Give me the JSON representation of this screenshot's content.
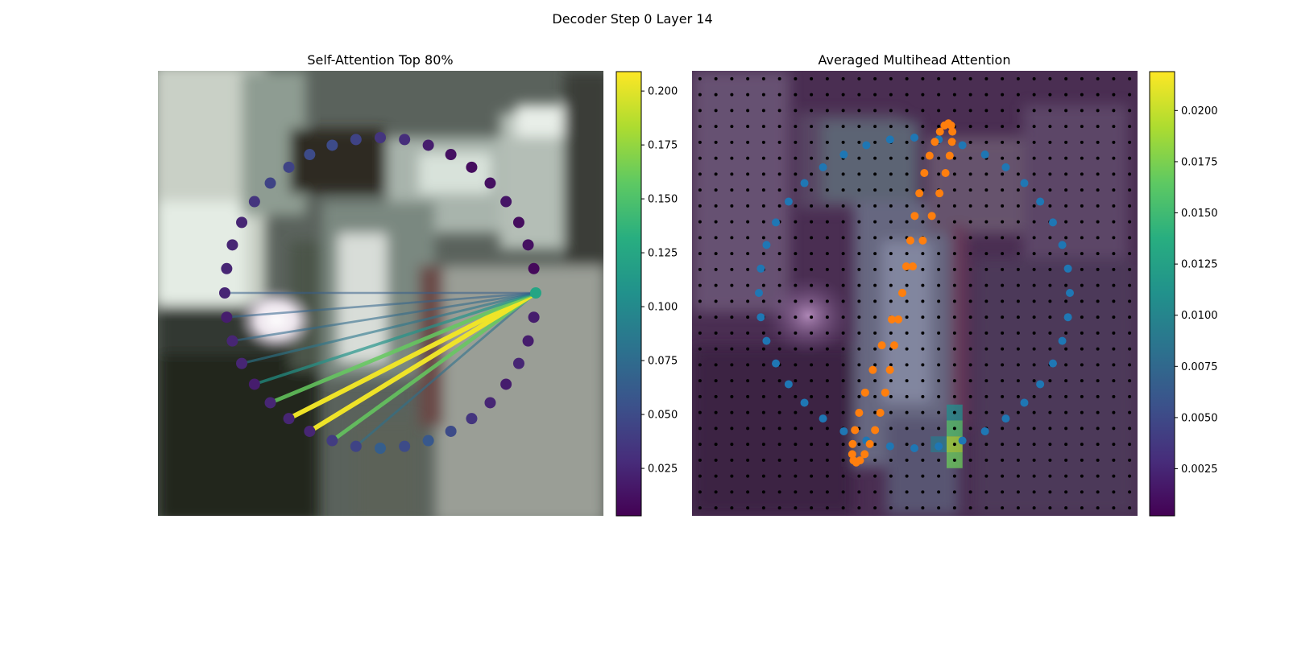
{
  "figure": {
    "title": "Decoder Step 0 Layer 14"
  },
  "chart_data": [
    {
      "type": "scatter",
      "title": "Self-Attention Top 80%",
      "description_of_marks": "contour points on a ring, colored by attention weight; lines from the highlighted query point to top-attended points",
      "colormap": "viridis",
      "colorbar": {
        "range": [
          0.003,
          0.209
        ],
        "ticks": [
          "0.025",
          "0.050",
          "0.075",
          "0.100",
          "0.125",
          "0.150",
          "0.175",
          "0.200"
        ]
      },
      "num_points": 40,
      "query_point_index": 10,
      "point_values": [
        0.035,
        0.03,
        0.02,
        0.012,
        0.01,
        0.012,
        0.015,
        0.01,
        0.012,
        0.008,
        0.125,
        0.02,
        0.02,
        0.025,
        0.02,
        0.025,
        0.035,
        0.05,
        0.06,
        0.05,
        0.065,
        0.045,
        0.04,
        0.025,
        0.025,
        0.025,
        0.02,
        0.025,
        0.025,
        0.02,
        0.025,
        0.025,
        0.025,
        0.025,
        0.035,
        0.045,
        0.045,
        0.05,
        0.05,
        0.045
      ],
      "attention_lines": [
        {
          "to_index": 21,
          "weight": 0.08
        },
        {
          "to_index": 22,
          "weight": 0.16
        },
        {
          "to_index": 23,
          "weight": 0.205
        },
        {
          "to_index": 24,
          "weight": 0.205
        },
        {
          "to_index": 25,
          "weight": 0.16
        },
        {
          "to_index": 26,
          "weight": 0.11
        },
        {
          "to_index": 27,
          "weight": 0.085
        },
        {
          "to_index": 28,
          "weight": 0.075
        },
        {
          "to_index": 29,
          "weight": 0.07
        },
        {
          "to_index": 30,
          "weight": 0.065
        }
      ]
    },
    {
      "type": "heatmap",
      "title": "Averaged Multihead Attention",
      "colormap": "viridis",
      "colorbar": {
        "range": [
          0.0002,
          0.0219
        ],
        "ticks": [
          "0.0025",
          "0.0050",
          "0.0075",
          "0.0100",
          "0.0125",
          "0.0150",
          "0.0175",
          "0.0200"
        ]
      },
      "grid_size": 28,
      "hot_cells": [
        {
          "col": 16,
          "row": 22,
          "value": 0.016
        },
        {
          "col": 16,
          "row": 23,
          "value": 0.019
        },
        {
          "col": 16,
          "row": 24,
          "value": 0.017
        },
        {
          "col": 16,
          "row": 21,
          "value": 0.011
        },
        {
          "col": 15,
          "row": 23,
          "value": 0.009
        }
      ],
      "series": [
        {
          "color": "#1f77b4",
          "marker": "circle",
          "kind": "outer contour",
          "count": 40
        },
        {
          "color": "#ff7f0e",
          "marker": "circle",
          "kind": "inner contour",
          "count": 40
        }
      ]
    }
  ],
  "colors": {
    "blue_points": "#1f77b4",
    "orange_points": "#ff7f0e",
    "grid_dots": "#000000"
  }
}
